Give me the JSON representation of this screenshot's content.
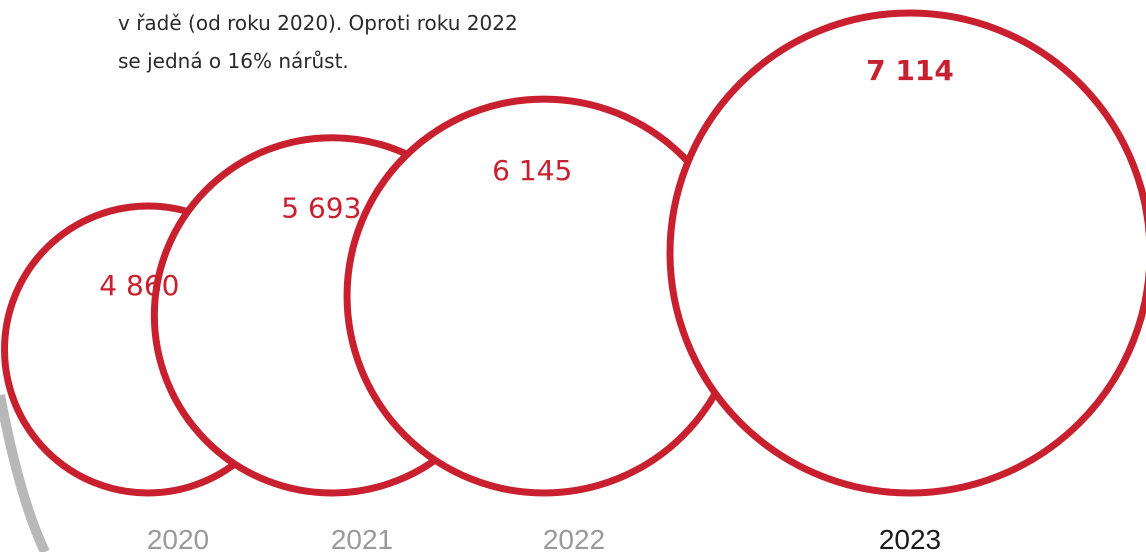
{
  "intro_text": [
    "v řadě (od roku 2020). Oproti roku 2022",
    "se jedná o 16% nárůst."
  ],
  "colors": {
    "ring": "#c8202e",
    "value_text": "#c8202e",
    "year_muted": "#9a9a9a",
    "year_active": "#1a1a1a",
    "body_text": "#2b2b2b",
    "background_arc": "#b8b8b8"
  },
  "chart_data": {
    "type": "bubble",
    "title": "",
    "categories": [
      "2020",
      "2021",
      "2022",
      "2023"
    ],
    "values": [
      4860,
      5693,
      6145,
      7114
    ],
    "value_labels": [
      "4 860",
      "5 693",
      "6 145",
      "7 114"
    ],
    "highlighted_category": "2023",
    "legend": "none",
    "grid": false
  }
}
